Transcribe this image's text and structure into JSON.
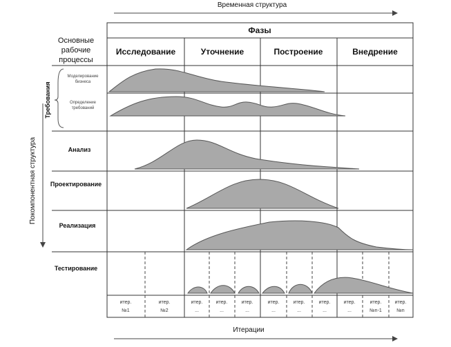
{
  "time_axis": "Временная структура",
  "structure_axis": "Покомпонентная структура",
  "phases_header": "Фазы",
  "phases": [
    "Исследование",
    "Уточнение",
    "Построение",
    "Внедрение"
  ],
  "workflows_header": [
    "Основные",
    "рабочие",
    "процессы"
  ],
  "requirements": {
    "label": "Требования",
    "sub": [
      [
        "Моделирование",
        "бизнеса"
      ],
      [
        "Определение",
        "требований"
      ]
    ]
  },
  "workflows": [
    "Анализ",
    "Проектирование",
    "Реализация",
    "Тестирование"
  ],
  "iterations": [
    [
      "итер.",
      "№1"
    ],
    [
      "итер.",
      "№2"
    ],
    [
      "итер.",
      "..."
    ],
    [
      "итер.",
      "..."
    ],
    [
      "итер.",
      "..."
    ],
    [
      "итер.",
      "..."
    ],
    [
      "итер.",
      "..."
    ],
    [
      "итер.",
      "..."
    ],
    [
      "итер.",
      "..."
    ],
    [
      "итер.",
      "№n-1"
    ],
    [
      "итер.",
      "№n"
    ]
  ],
  "iterations_axis": "Итерации"
}
